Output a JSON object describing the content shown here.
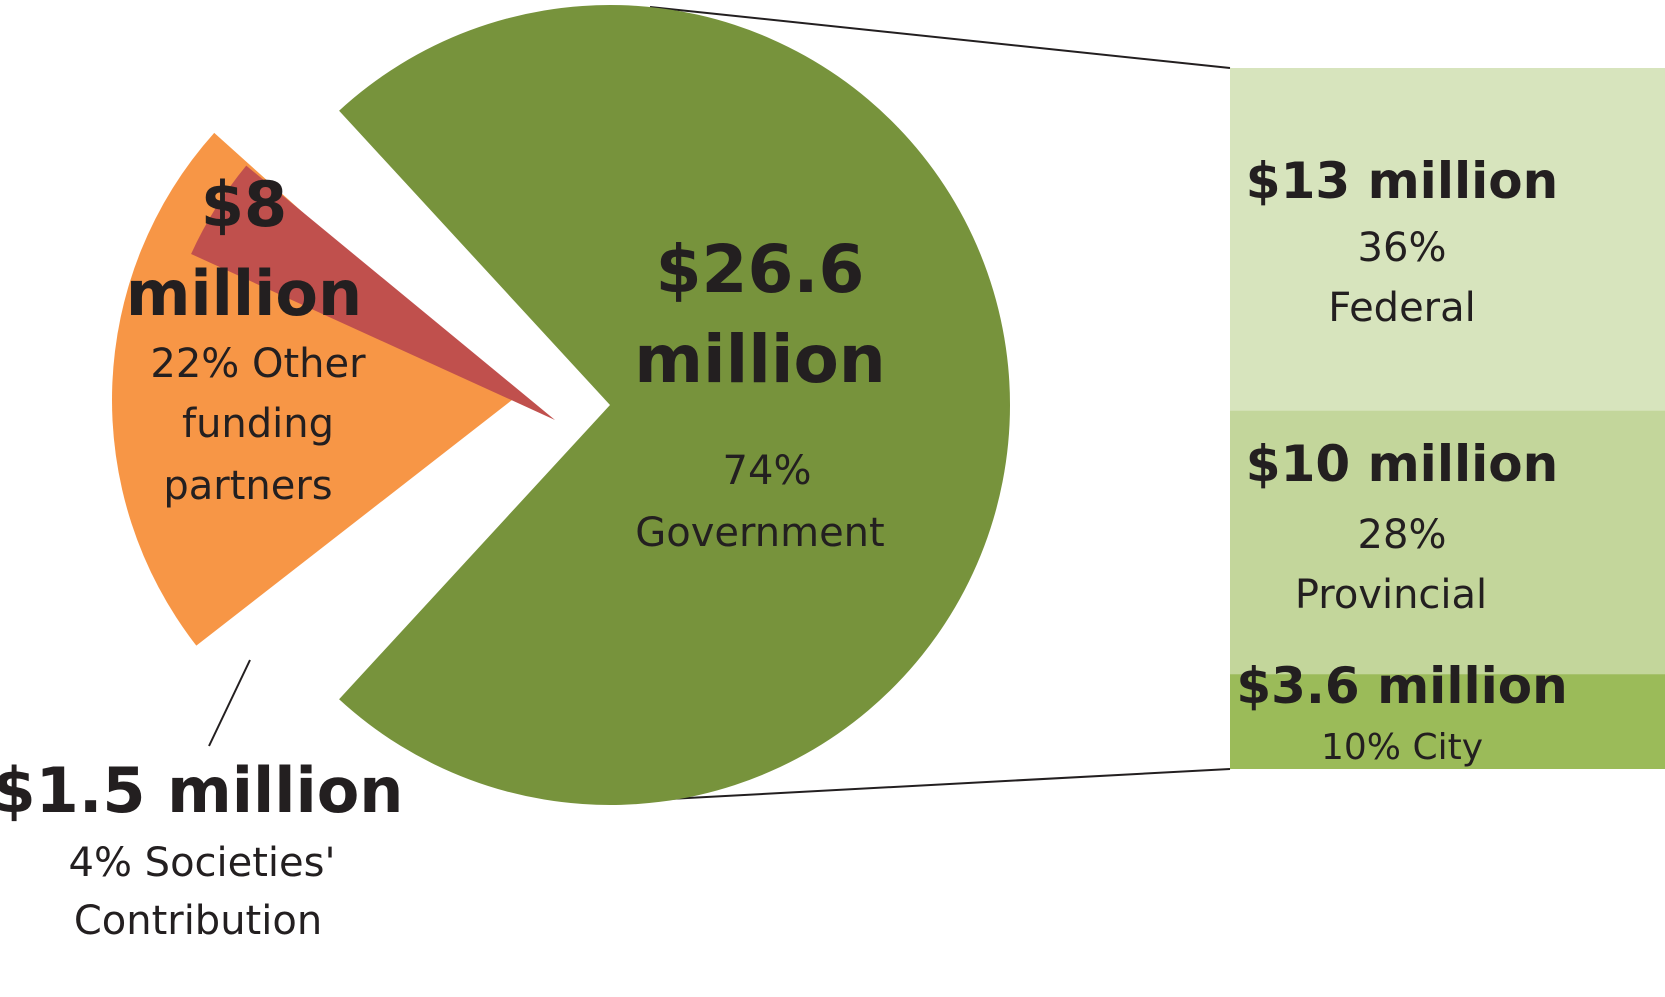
{
  "chart_data": {
    "type": "pie",
    "title": "",
    "unit": "$ million",
    "slices": [
      {
        "id": "government",
        "amount_label": "$26.6 million",
        "amount_lines": [
          "$26.6",
          "million"
        ],
        "percent_label": "74%",
        "category_label": "Government",
        "value": 26.6,
        "percent": 74,
        "color": "#77933c"
      },
      {
        "id": "other",
        "amount_label": "$8 million",
        "amount_lines": [
          "$8",
          "million"
        ],
        "desc_lines": [
          "22% Other",
          "funding",
          "partners"
        ],
        "value": 8,
        "percent": 22,
        "color": "#f79646"
      },
      {
        "id": "societies",
        "amount_label": "$1.5 million",
        "desc_lines": [
          "4% Societies'",
          "Contribution"
        ],
        "value": 1.5,
        "percent": 4,
        "color": "#c0504d"
      }
    ],
    "breakdown": {
      "parent": "Government",
      "segments": [
        {
          "id": "federal",
          "amount_label": "$13 million",
          "percent_label": "36%",
          "category_label": "Federal",
          "value": 13,
          "percent": 36,
          "color": "#d7e4bd"
        },
        {
          "id": "provincial",
          "amount_label": "$10 million",
          "percent_label": "28%",
          "category_label": "Provincial",
          "value": 10,
          "percent": 28,
          "color": "#c3d69b"
        },
        {
          "id": "city",
          "amount_label": "$3.6 million",
          "desc_label": "10% City",
          "value": 3.6,
          "percent": 10,
          "color": "#9bbb59"
        }
      ]
    },
    "connector_color": "#231f20"
  }
}
